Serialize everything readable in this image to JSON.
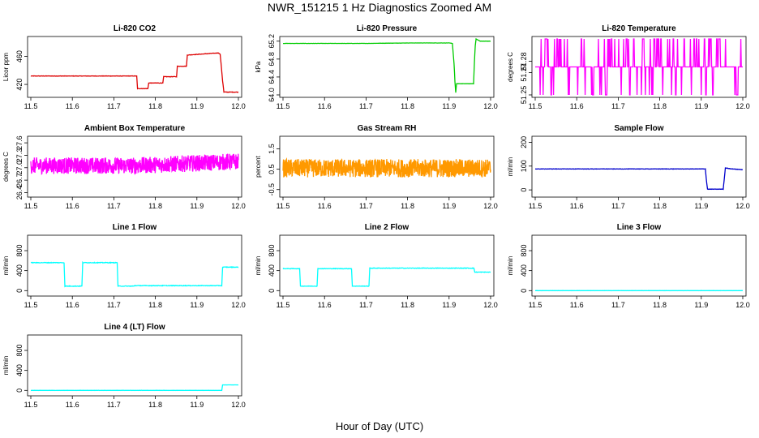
{
  "title": "NWR_151215  1 Hz Diagnostics Zoomed AM",
  "xlabel": "Hour of Day (UTC)",
  "chart_data": [
    {
      "id": "co2",
      "type": "line",
      "title": "Li-820 CO2",
      "ylabel": "Licor ppm",
      "color": "#dd0000",
      "xlim": [
        11.5,
        12.0
      ],
      "ylim": [
        405,
        485
      ],
      "yticks": [
        420,
        460
      ],
      "ytick_labels": [
        "420",
        "460"
      ],
      "xticks": [
        11.5,
        11.6,
        11.7,
        11.8,
        11.9,
        12.0
      ],
      "xtick_labels": [
        "11.5",
        "11.6",
        "11.7",
        "11.8",
        "11.9",
        "12.0"
      ],
      "series": [
        {
          "x": [
            11.5,
            11.755,
            11.757,
            11.782,
            11.784,
            11.818,
            11.82,
            11.851,
            11.853,
            11.875,
            11.877,
            11.878,
            11.952,
            11.956,
            11.959,
            11.962,
            11.965,
            12.0
          ],
          "y": [
            432,
            432,
            414,
            414,
            422,
            422,
            431,
            431,
            446,
            446,
            462,
            462,
            465,
            463,
            445,
            425,
            409,
            409
          ]
        }
      ],
      "noise": 0.6
    },
    {
      "id": "pressure",
      "type": "line",
      "title": "Li-820 Pressure",
      "ylabel": "kPa",
      "color": "#00cc00",
      "xlim": [
        11.5,
        12.0
      ],
      "ylim": [
        64.0,
        65.25
      ],
      "yticks": [
        64.0,
        64.4,
        64.8,
        65.2
      ],
      "ytick_labels": [
        "64.0",
        "64.4",
        "64.8",
        "65.2"
      ],
      "xticks": [
        11.5,
        11.6,
        11.7,
        11.8,
        11.9,
        12.0
      ],
      "xtick_labels": [
        "11.5",
        "11.6",
        "11.7",
        "11.8",
        "11.9",
        "12.0"
      ],
      "series": [
        {
          "x": [
            11.5,
            11.6,
            11.7,
            11.8,
            11.9,
            11.908,
            11.912,
            11.914,
            11.916,
            11.918,
            11.959,
            11.961,
            11.963,
            11.965,
            11.975,
            12.0
          ],
          "y": [
            65.15,
            65.15,
            65.15,
            65.16,
            65.16,
            65.15,
            64.7,
            64.3,
            64.05,
            64.25,
            64.25,
            64.7,
            65.1,
            65.25,
            65.2,
            65.2
          ]
        }
      ],
      "noise": 0.004
    },
    {
      "id": "licor_temp",
      "type": "line",
      "title": "Li-820 Temperature",
      "ylabel": "degrees C",
      "color": "#ff00ff",
      "xlim": [
        11.5,
        12.0
      ],
      "ylim": [
        51.25,
        51.3
      ],
      "yticks": [
        51.25,
        51.27,
        51.28
      ],
      "ytick_labels": [
        "51.25",
        "51.27",
        "51.28"
      ],
      "xticks": [
        11.5,
        11.6,
        11.7,
        11.8,
        11.9,
        12.0
      ],
      "xtick_labels": [
        "11.5",
        "11.6",
        "11.7",
        "11.8",
        "11.9",
        "12.0"
      ],
      "levels": [
        51.25,
        51.275,
        51.3
      ],
      "base": 51.275,
      "pattern": "switching"
    },
    {
      "id": "box_temp",
      "type": "line",
      "title": "Ambient Box Temperature",
      "ylabel": "degrees C",
      "color": "#ff00ff",
      "xlim": [
        11.5,
        12.0
      ],
      "ylim": [
        26.35,
        27.7
      ],
      "yticks": [
        26.4,
        26.7,
        27.0,
        27.3,
        27.6
      ],
      "ytick_labels": [
        "26.4",
        "26.7",
        "27.0",
        "27.3",
        "27.6"
      ],
      "xticks": [
        11.5,
        11.6,
        11.7,
        11.8,
        11.9,
        12.0
      ],
      "xtick_labels": [
        "11.5",
        "11.6",
        "11.7",
        "11.8",
        "11.9",
        "12.0"
      ],
      "series": [
        {
          "x": [
            11.5,
            11.75,
            12.0
          ],
          "y": [
            27.05,
            27.05,
            27.15
          ]
        }
      ],
      "noise": 0.4
    },
    {
      "id": "rh",
      "type": "line",
      "title": "Gas Stream RH",
      "ylabel": "percent",
      "color": "#ff9900",
      "xlim": [
        11.5,
        12.0
      ],
      "ylim": [
        -0.75,
        2.0
      ],
      "yticks": [
        -0.5,
        0.5,
        1.5
      ],
      "ytick_labels": [
        "-0.5",
        "0.5",
        "1.5"
      ],
      "xticks": [
        11.5,
        11.6,
        11.7,
        11.8,
        11.9,
        12.0
      ],
      "xtick_labels": [
        "11.5",
        "11.6",
        "11.7",
        "11.8",
        "11.9",
        "12.0"
      ],
      "series": [
        {
          "x": [
            11.5,
            12.0
          ],
          "y": [
            0.55,
            0.55
          ]
        }
      ],
      "noise": 0.9
    },
    {
      "id": "sample_flow",
      "type": "line",
      "title": "Sample Flow",
      "ylabel": "ml/min",
      "color": "#0000cc",
      "xlim": [
        11.5,
        12.0
      ],
      "ylim": [
        -20,
        215
      ],
      "yticks": [
        0,
        100,
        200
      ],
      "ytick_labels": [
        "0",
        "100",
        "200"
      ],
      "xticks": [
        11.5,
        11.6,
        11.7,
        11.8,
        11.9,
        12.0
      ],
      "xtick_labels": [
        "11.5",
        "11.6",
        "11.7",
        "11.8",
        "11.9",
        "12.0"
      ],
      "series": [
        {
          "x": [
            11.5,
            11.91,
            11.913,
            11.915,
            11.953,
            11.955,
            11.958,
            11.975,
            12.0
          ],
          "y": [
            88,
            88,
            30,
            3,
            3,
            40,
            92,
            88,
            85
          ]
        }
      ],
      "noise": 1.5
    },
    {
      "id": "line1",
      "type": "line",
      "title": "Line 1 Flow",
      "ylabel": "ml/min",
      "color": "#00ffff",
      "xlim": [
        11.5,
        12.0
      ],
      "ylim": [
        -60,
        1060
      ],
      "yticks": [
        0,
        400,
        800
      ],
      "ytick_labels": [
        "0",
        "400",
        "800"
      ],
      "xticks": [
        11.5,
        11.6,
        11.7,
        11.8,
        11.9,
        12.0
      ],
      "xtick_labels": [
        "11.5",
        "11.6",
        "11.7",
        "11.8",
        "11.9",
        "12.0"
      ],
      "series": [
        {
          "x": [
            11.5,
            11.58,
            11.582,
            11.623,
            11.625,
            11.708,
            11.71,
            11.748,
            11.75,
            11.96,
            11.962,
            12.0
          ],
          "y": [
            560,
            560,
            90,
            90,
            560,
            560,
            90,
            90,
            100,
            100,
            470,
            470
          ]
        }
      ],
      "noise": 12
    },
    {
      "id": "line2",
      "type": "line",
      "title": "Line 2 Flow",
      "ylabel": "ml/min",
      "color": "#00ffff",
      "xlim": [
        11.5,
        12.0
      ],
      "ylim": [
        -60,
        1060
      ],
      "yticks": [
        0,
        400,
        800
      ],
      "ytick_labels": [
        "0",
        "400",
        "800"
      ],
      "xticks": [
        11.5,
        11.6,
        11.7,
        11.8,
        11.9,
        12.0
      ],
      "xtick_labels": [
        "11.5",
        "11.6",
        "11.7",
        "11.8",
        "11.9",
        "12.0"
      ],
      "series": [
        {
          "x": [
            11.5,
            11.54,
            11.542,
            11.582,
            11.584,
            11.665,
            11.667,
            11.707,
            11.709,
            11.96,
            11.962,
            12.0
          ],
          "y": [
            440,
            440,
            90,
            90,
            440,
            440,
            90,
            90,
            450,
            450,
            370,
            370
          ]
        }
      ],
      "noise": 10
    },
    {
      "id": "line3",
      "type": "line",
      "title": "Line 3 Flow",
      "ylabel": "ml/min",
      "color": "#00ffff",
      "xlim": [
        11.5,
        12.0
      ],
      "ylim": [
        -60,
        1060
      ],
      "yticks": [
        0,
        400,
        800
      ],
      "ytick_labels": [
        "0",
        "400",
        "800"
      ],
      "xticks": [
        11.5,
        11.6,
        11.7,
        11.8,
        11.9,
        12.0
      ],
      "xtick_labels": [
        "11.5",
        "11.6",
        "11.7",
        "11.8",
        "11.9",
        "12.0"
      ],
      "series": [
        {
          "x": [
            11.5,
            12.0
          ],
          "y": [
            0,
            0
          ]
        }
      ],
      "noise": 2
    },
    {
      "id": "line4",
      "type": "line",
      "title": "Line 4 (LT) Flow",
      "ylabel": "ml/min",
      "color": "#00ffff",
      "xlim": [
        11.5,
        12.0
      ],
      "ylim": [
        -60,
        1060
      ],
      "yticks": [
        0,
        400,
        800
      ],
      "ytick_labels": [
        "0",
        "400",
        "800"
      ],
      "xticks": [
        11.5,
        11.6,
        11.7,
        11.8,
        11.9,
        12.0
      ],
      "xtick_labels": [
        "11.5",
        "11.6",
        "11.7",
        "11.8",
        "11.9",
        "12.0"
      ],
      "series": [
        {
          "x": [
            11.5,
            11.96,
            11.962,
            12.0
          ],
          "y": [
            0,
            0,
            110,
            110
          ]
        }
      ],
      "noise": 2
    }
  ]
}
